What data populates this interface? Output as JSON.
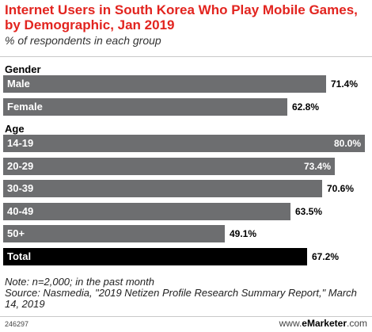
{
  "chart_data": {
    "type": "bar",
    "title": "Internet Users in South Korea Who Play Mobile Games, by Demographic, Jan 2019",
    "subtitle": "% of respondents in each group",
    "xlim": [
      0,
      80
    ],
    "groups": [
      {
        "label": "Gender",
        "categories": [
          "Male",
          "Female"
        ],
        "values": [
          71.4,
          62.8
        ],
        "value_labels": [
          "71.4%",
          "62.8%"
        ]
      },
      {
        "label": "Age",
        "categories": [
          "14-19",
          "20-29",
          "30-39",
          "40-49",
          "50+",
          "Total"
        ],
        "values": [
          80.0,
          73.4,
          70.6,
          63.5,
          49.1,
          67.2
        ],
        "value_labels": [
          "80.0%",
          "73.4%",
          "70.6%",
          "63.5%",
          "49.1%",
          "67.2%"
        ]
      }
    ],
    "colors": {
      "bar": "#6d6e70",
      "total_bar": "#000000",
      "title": "#e2241f"
    }
  },
  "footer": {
    "note": "Note: n=2,000; in the past month",
    "source": "Source: Nasmedia, \"2019 Netizen Profile Research Summary Report,\" March 14, 2019",
    "chart_id": "246297",
    "brand_prefix": "www.",
    "brand_name": "eMarketer",
    "brand_suffix": ".com"
  }
}
